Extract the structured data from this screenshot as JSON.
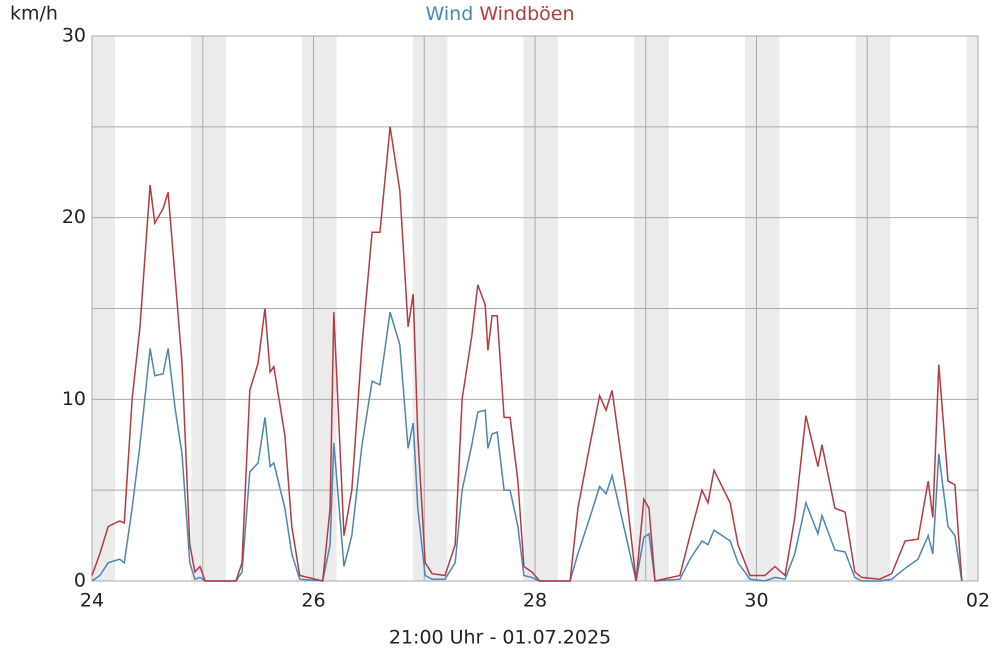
{
  "chart_data": {
    "type": "line",
    "legend_position": "top",
    "y_label": "km/h",
    "x_label": "21:00 Uhr - 01.07.2025",
    "xlim": [
      0,
      192
    ],
    "xticks": [
      {
        "value": 0,
        "label": "24"
      },
      {
        "value": 48,
        "label": "26"
      },
      {
        "value": 96,
        "label": "28"
      },
      {
        "value": 144,
        "label": "30"
      },
      {
        "value": 192,
        "label": "02"
      }
    ],
    "x_minor_ticks": [
      24,
      72,
      120,
      168
    ],
    "ylim": [
      0,
      30
    ],
    "yticks": [
      0,
      10,
      20,
      30
    ],
    "y_minor_ticks": [
      5,
      15,
      25
    ],
    "grid": true,
    "x": [
      0,
      1.7,
      3.5,
      6,
      7,
      8.7,
      10.4,
      12.6,
      13.6,
      15.4,
      16.5,
      18,
      19.5,
      21.2,
      22.3,
      23.4,
      24.5,
      31.2,
      32.5,
      34.2,
      36,
      37.5,
      38.6,
      39.4,
      41.8,
      43.3,
      45,
      50,
      51.6,
      52.4,
      54.6,
      56.3,
      58.5,
      60.7,
      62.4,
      64.6,
      66.7,
      68.5,
      69.6,
      70.6,
      72.2,
      73.7,
      76.5,
      78.7,
      80.2,
      82.3,
      83.6,
      85.2,
      85.8,
      86.7,
      87.8,
      89.3,
      90.6,
      92.3,
      93.6,
      95.3,
      97,
      103.6,
      105.3,
      107.9,
      110,
      111.4,
      112.7,
      115.7,
      117.9,
      119.6,
      120.7,
      122,
      127.4,
      129.6,
      132.2,
      133.5,
      134.8,
      138.3,
      140,
      142.6,
      145.8,
      148,
      150.2,
      152.3,
      154.7,
      157.3,
      158.2,
      161,
      163.2,
      165.3,
      166.8,
      170.7,
      173.3,
      176.2,
      179,
      181.2,
      182.2,
      183.5,
      185.5,
      187,
      188.5
    ],
    "series": [
      {
        "name": "Wind",
        "color": "#4a86b4",
        "values": [
          0,
          0.3,
          1,
          1.2,
          1,
          4,
          7.5,
          12.8,
          11.3,
          11.4,
          12.8,
          9.5,
          7,
          1,
          0.1,
          0.2,
          0,
          0,
          0.5,
          6,
          6.5,
          9,
          6.3,
          6.5,
          4,
          1.5,
          0.1,
          0,
          2,
          7.6,
          0.8,
          2.5,
          7.5,
          11,
          10.8,
          14.8,
          13,
          7.3,
          8.7,
          4,
          0.3,
          0.1,
          0.1,
          1,
          5,
          7.5,
          9.3,
          9.4,
          7.3,
          8.1,
          8.2,
          5,
          5,
          3,
          0.3,
          0.2,
          0,
          0,
          1.5,
          3.5,
          5.2,
          4.8,
          5.8,
          2.5,
          0,
          2.4,
          2.6,
          0,
          0.1,
          1.2,
          2.2,
          2,
          2.8,
          2.2,
          1,
          0.1,
          0,
          0.2,
          0.1,
          1.5,
          4.3,
          2.6,
          3.6,
          1.7,
          1.6,
          0.2,
          0,
          0,
          0.1,
          0.7,
          1.2,
          2.5,
          1.5,
          7,
          3,
          2.5,
          0
        ]
      },
      {
        "name": "Windböen",
        "color": "#b8383f",
        "values": [
          0.3,
          1.5,
          3,
          3.3,
          3.2,
          10,
          14,
          21.8,
          19.7,
          20.5,
          21.4,
          16.7,
          12,
          2,
          0.5,
          0.8,
          0,
          0,
          1,
          10.5,
          12,
          15,
          11.5,
          11.8,
          8,
          3,
          0.3,
          0,
          4,
          14.8,
          2.5,
          5,
          13,
          19.2,
          19.2,
          25,
          21.5,
          14,
          15.8,
          8,
          1,
          0.4,
          0.3,
          2,
          10,
          13.5,
          16.3,
          15.2,
          12.7,
          14.6,
          14.6,
          9,
          9,
          5.5,
          0.8,
          0.5,
          0,
          0,
          4,
          7.5,
          10.2,
          9.4,
          10.5,
          5,
          0,
          4.5,
          4,
          0,
          0.3,
          2.5,
          5,
          4.3,
          6.1,
          4.3,
          2,
          0.3,
          0.3,
          0.8,
          0.3,
          3.5,
          9.1,
          6.3,
          7.5,
          4,
          3.8,
          0.5,
          0.2,
          0.1,
          0.4,
          2.2,
          2.3,
          5.5,
          3.5,
          11.9,
          5.5,
          5.3,
          0
        ]
      }
    ]
  }
}
